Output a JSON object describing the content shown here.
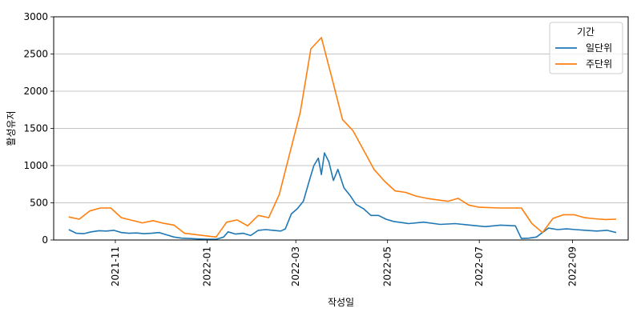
{
  "chart_data": {
    "type": "line",
    "title": "",
    "xlabel": "작성일",
    "ylabel": "활성유저",
    "ylim": [
      0,
      3000
    ],
    "yticks": [
      0,
      500,
      1000,
      1500,
      2000,
      2500,
      3000
    ],
    "xlim": [
      "2021-09-21",
      "2022-10-08"
    ],
    "xticks": [
      "2021-11",
      "2022-01",
      "2022-03",
      "2022-05",
      "2022-07",
      "2022-09"
    ],
    "grid": "y-major",
    "legend": {
      "title": "기간",
      "placement": "top-right"
    },
    "series": [
      {
        "name": "일단위",
        "color": "#1f77b4",
        "points": [
          [
            "2021-10-01",
            140
          ],
          [
            "2021-10-06",
            90
          ],
          [
            "2021-10-11",
            85
          ],
          [
            "2021-10-16",
            110
          ],
          [
            "2021-10-21",
            125
          ],
          [
            "2021-10-26",
            120
          ],
          [
            "2021-10-31",
            130
          ],
          [
            "2021-11-05",
            100
          ],
          [
            "2021-11-10",
            90
          ],
          [
            "2021-11-15",
            95
          ],
          [
            "2021-11-20",
            85
          ],
          [
            "2021-11-25",
            90
          ],
          [
            "2021-11-30",
            100
          ],
          [
            "2021-12-05",
            70
          ],
          [
            "2021-12-10",
            40
          ],
          [
            "2021-12-15",
            25
          ],
          [
            "2021-12-20",
            20
          ],
          [
            "2021-12-25",
            15
          ],
          [
            "2022-01-01",
            10
          ],
          [
            "2022-01-07",
            10
          ],
          [
            "2022-01-12",
            40
          ],
          [
            "2022-01-15",
            110
          ],
          [
            "2022-01-20",
            80
          ],
          [
            "2022-01-25",
            90
          ],
          [
            "2022-01-30",
            60
          ],
          [
            "2022-02-04",
            130
          ],
          [
            "2022-02-09",
            140
          ],
          [
            "2022-02-14",
            130
          ],
          [
            "2022-02-19",
            120
          ],
          [
            "2022-02-22",
            150
          ],
          [
            "2022-02-26",
            350
          ],
          [
            "2022-03-02",
            420
          ],
          [
            "2022-03-06",
            520
          ],
          [
            "2022-03-10",
            800
          ],
          [
            "2022-03-13",
            1000
          ],
          [
            "2022-03-16",
            1100
          ],
          [
            "2022-03-18",
            880
          ],
          [
            "2022-03-20",
            1170
          ],
          [
            "2022-03-23",
            1050
          ],
          [
            "2022-03-26",
            800
          ],
          [
            "2022-03-29",
            950
          ],
          [
            "2022-04-02",
            700
          ],
          [
            "2022-04-06",
            600
          ],
          [
            "2022-04-10",
            480
          ],
          [
            "2022-04-15",
            420
          ],
          [
            "2022-04-20",
            330
          ],
          [
            "2022-04-25",
            330
          ],
          [
            "2022-04-30",
            280
          ],
          [
            "2022-05-05",
            250
          ],
          [
            "2022-05-15",
            220
          ],
          [
            "2022-05-25",
            240
          ],
          [
            "2022-06-05",
            210
          ],
          [
            "2022-06-15",
            220
          ],
          [
            "2022-06-25",
            200
          ],
          [
            "2022-07-05",
            180
          ],
          [
            "2022-07-15",
            200
          ],
          [
            "2022-07-25",
            190
          ],
          [
            "2022-07-29",
            20
          ],
          [
            "2022-08-03",
            25
          ],
          [
            "2022-08-08",
            40
          ],
          [
            "2022-08-12",
            100
          ],
          [
            "2022-08-16",
            160
          ],
          [
            "2022-08-22",
            140
          ],
          [
            "2022-08-28",
            150
          ],
          [
            "2022-09-03",
            140
          ],
          [
            "2022-09-10",
            130
          ],
          [
            "2022-09-17",
            120
          ],
          [
            "2022-09-24",
            130
          ],
          [
            "2022-09-30",
            100
          ]
        ]
      },
      {
        "name": "주단위",
        "color": "#ff7f0e",
        "points": [
          [
            "2021-10-01",
            310
          ],
          [
            "2021-10-08",
            280
          ],
          [
            "2021-10-15",
            390
          ],
          [
            "2021-10-22",
            430
          ],
          [
            "2021-10-29",
            430
          ],
          [
            "2021-11-05",
            300
          ],
          [
            "2021-11-19",
            230
          ],
          [
            "2021-11-26",
            260
          ],
          [
            "2021-12-03",
            225
          ],
          [
            "2021-12-10",
            200
          ],
          [
            "2021-12-17",
            90
          ],
          [
            "2022-01-07",
            40
          ],
          [
            "2022-01-14",
            240
          ],
          [
            "2022-01-21",
            270
          ],
          [
            "2022-01-28",
            190
          ],
          [
            "2022-02-04",
            330
          ],
          [
            "2022-02-11",
            300
          ],
          [
            "2022-02-18",
            610
          ],
          [
            "2022-03-04",
            1720
          ],
          [
            "2022-03-11",
            2570
          ],
          [
            "2022-03-18",
            2720
          ],
          [
            "2022-03-25",
            2180
          ],
          [
            "2022-04-01",
            1620
          ],
          [
            "2022-04-08",
            1470
          ],
          [
            "2022-04-15",
            1210
          ],
          [
            "2022-04-22",
            950
          ],
          [
            "2022-04-29",
            790
          ],
          [
            "2022-05-06",
            660
          ],
          [
            "2022-05-13",
            640
          ],
          [
            "2022-05-20",
            590
          ],
          [
            "2022-05-27",
            560
          ],
          [
            "2022-06-03",
            540
          ],
          [
            "2022-06-10",
            520
          ],
          [
            "2022-06-17",
            560
          ],
          [
            "2022-06-24",
            470
          ],
          [
            "2022-07-01",
            440
          ],
          [
            "2022-07-15",
            430
          ],
          [
            "2022-07-22",
            430
          ],
          [
            "2022-07-29",
            430
          ],
          [
            "2022-08-05",
            220
          ],
          [
            "2022-08-12",
            100
          ],
          [
            "2022-08-19",
            290
          ],
          [
            "2022-08-26",
            340
          ],
          [
            "2022-09-02",
            340
          ],
          [
            "2022-09-09",
            300
          ],
          [
            "2022-09-16",
            285
          ],
          [
            "2022-09-23",
            275
          ],
          [
            "2022-09-30",
            280
          ]
        ]
      }
    ]
  }
}
